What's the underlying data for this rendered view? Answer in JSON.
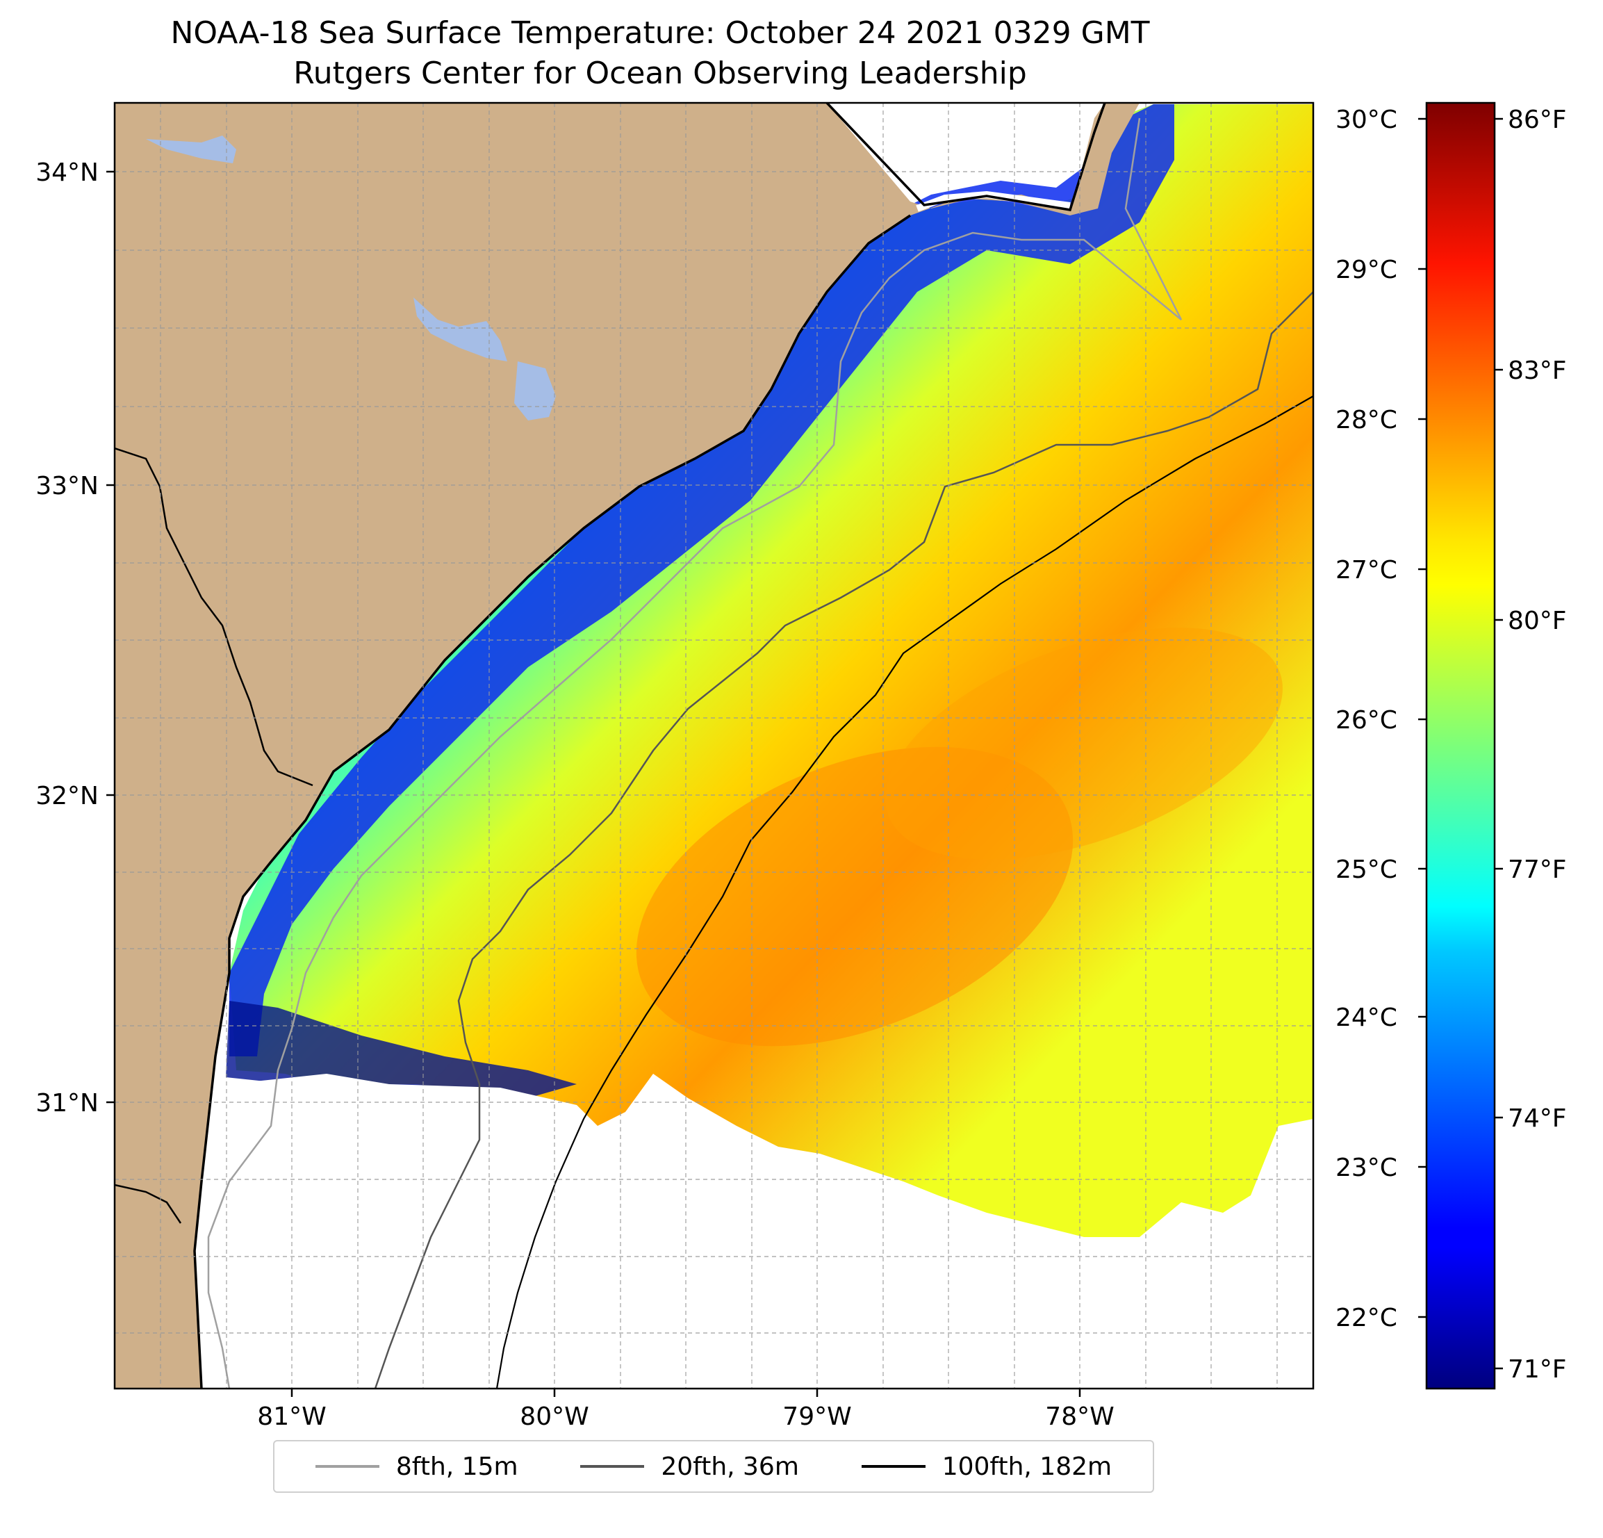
{
  "title": {
    "line1": "NOAA-18 Sea Surface Temperature: October 24 2021 0329 GMT",
    "line2": "Rutgers Center for Ocean Observing Leadership"
  },
  "map": {
    "lat_ticks": [
      "34°N",
      "33°N",
      "32°N",
      "31°N"
    ],
    "lon_ticks": [
      "81°W",
      "80°W",
      "79°W",
      "78°W"
    ],
    "colors": {
      "land": "#cfb08a",
      "lakes": "#a5bde6",
      "nodata": "#ffffff"
    }
  },
  "colorbar": {
    "celsius_ticks": [
      "30°C",
      "29°C",
      "28°C",
      "27°C",
      "26°C",
      "25°C",
      "24°C",
      "23°C",
      "22°C"
    ],
    "fahrenheit_ticks": [
      "86°F",
      "83°F",
      "80°F",
      "77°F",
      "74°F",
      "71°F"
    ],
    "colormap": "jet",
    "range_c": [
      21.5,
      30.1
    ]
  },
  "legend": {
    "items": [
      {
        "label": "8fth, 15m",
        "color": "#a0a0a0"
      },
      {
        "label": "20fth, 36m",
        "color": "#555555"
      },
      {
        "label": "100fth, 182m",
        "color": "#000000"
      }
    ]
  }
}
